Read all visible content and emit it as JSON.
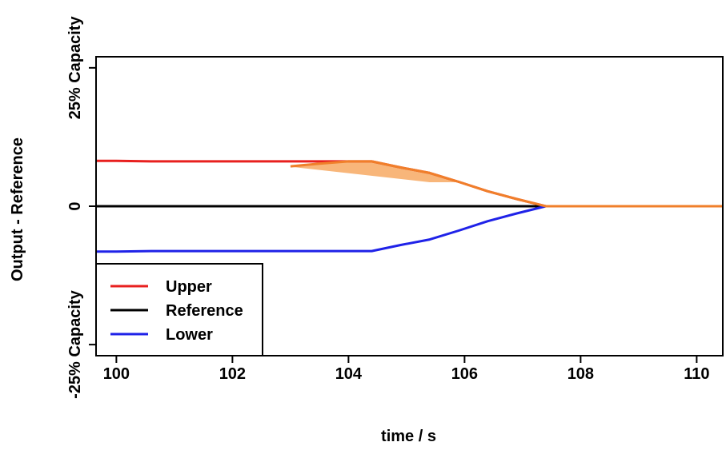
{
  "chart_data": {
    "type": "line",
    "xlabel": "time / s",
    "ylabel": "Output - Reference",
    "xlim": [
      99.65,
      110.45
    ],
    "ylim": [
      -0.27,
      0.27
    ],
    "x_ticks": [
      {
        "value": 100,
        "label": "100"
      },
      {
        "value": 102,
        "label": "102"
      },
      {
        "value": 104,
        "label": "104"
      },
      {
        "value": 106,
        "label": "106"
      },
      {
        "value": 108,
        "label": "108"
      },
      {
        "value": 110,
        "label": "110"
      }
    ],
    "y_ticks": [
      {
        "value": -0.25,
        "label": "-25% Capacity"
      },
      {
        "value": 0,
        "label": "0"
      },
      {
        "value": 0.25,
        "label": "25% Capacity"
      }
    ],
    "legend_position": "bottom-left",
    "series": [
      {
        "name": "Upper",
        "color": "#e8201f",
        "x": [
          99.65,
          100.0,
          100.6,
          101.2,
          101.8,
          102.4,
          102.9,
          103.4,
          103.9,
          104.1,
          104.4,
          104.9,
          105.4,
          105.9,
          106.4,
          106.9,
          107.4,
          108.0,
          109.0,
          110.45
        ],
        "y": [
          0.082,
          0.082,
          0.081,
          0.081,
          0.081,
          0.081,
          0.081,
          0.081,
          0.081,
          0.081,
          0.081,
          0.07,
          0.06,
          0.044,
          0.027,
          0.013,
          0.0,
          0.0,
          0.0,
          0.0
        ]
      },
      {
        "name": "Reference",
        "color": "#000000",
        "x": [
          99.65,
          110.45
        ],
        "y": [
          0,
          0
        ]
      },
      {
        "name": "Lower",
        "color": "#1f22e8",
        "x": [
          99.65,
          100.0,
          100.6,
          101.2,
          101.8,
          102.4,
          102.9,
          103.4,
          103.9,
          104.1,
          104.4,
          104.9,
          105.4,
          105.9,
          106.4,
          106.9,
          107.4,
          108.0,
          109.0,
          110.45
        ],
        "y": [
          -0.082,
          -0.082,
          -0.081,
          -0.081,
          -0.081,
          -0.081,
          -0.081,
          -0.081,
          -0.081,
          -0.081,
          -0.081,
          -0.07,
          -0.06,
          -0.044,
          -0.027,
          -0.013,
          0.0,
          0.0,
          0.0,
          0.0
        ]
      }
    ],
    "band": {
      "fill_color": "#f8b67a",
      "stroke_color": "#f07f2a",
      "upper": {
        "x": [
          103.0,
          103.5,
          104.0,
          104.4,
          104.9,
          105.4,
          105.9,
          106.4,
          106.9,
          107.4,
          110.45
        ],
        "y": [
          0.072,
          0.077,
          0.081,
          0.081,
          0.07,
          0.06,
          0.044,
          0.027,
          0.013,
          0.0,
          0.0
        ]
      },
      "lower": {
        "x": [
          103.0,
          105.4,
          105.9,
          106.4,
          106.9,
          107.4,
          110.45
        ],
        "y": [
          0.072,
          0.044,
          0.044,
          0.027,
          0.013,
          0.0,
          0.0
        ]
      }
    },
    "legend": [
      {
        "label": "Upper",
        "color": "#e8201f"
      },
      {
        "label": "Reference",
        "color": "#000000"
      },
      {
        "label": "Lower",
        "color": "#1f22e8"
      }
    ]
  }
}
